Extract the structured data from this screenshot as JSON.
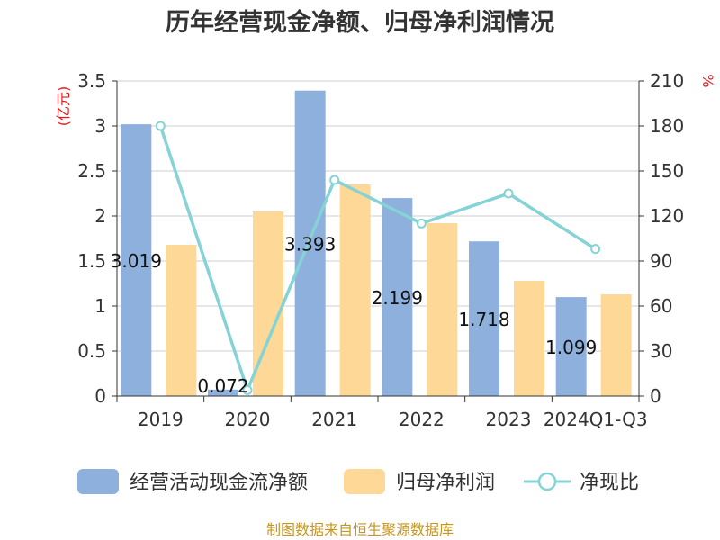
{
  "chart_data": {
    "type": "bar",
    "title": "历年经营现金净额、归母净利润情况",
    "categories": [
      "2019",
      "2020",
      "2021",
      "2022",
      "2023",
      "2024Q1-Q3"
    ],
    "y_left": {
      "unit": "(亿元)",
      "ylim": [
        0,
        3.5
      ],
      "ticks": [
        "0",
        "0.5",
        "1",
        "1.5",
        "2",
        "2.5",
        "3",
        "3.5"
      ]
    },
    "y_right": {
      "unit": "%",
      "ylim": [
        0,
        210
      ],
      "ticks": [
        "0",
        "30",
        "60",
        "90",
        "120",
        "150",
        "180",
        "210"
      ]
    },
    "series": [
      {
        "name": "经营活动现金流净额",
        "kind": "bar",
        "axis": "left",
        "color": "#8eb0dd",
        "values": [
          3.019,
          0.072,
          3.393,
          2.199,
          1.718,
          1.099
        ],
        "labels": [
          "3.019",
          "0.072",
          "3.393",
          "2.199",
          "1.718",
          "1.099"
        ]
      },
      {
        "name": "归母净利润",
        "kind": "bar",
        "axis": "left",
        "color": "#fed897",
        "values": [
          1.68,
          2.05,
          2.35,
          1.92,
          1.28,
          1.13
        ]
      },
      {
        "name": "净现比",
        "kind": "line",
        "axis": "right",
        "color": "#85d3d5",
        "values": [
          180.0,
          4.0,
          144.0,
          115.0,
          135.0,
          98.0
        ]
      }
    ],
    "grid": true,
    "legend": "bottom"
  },
  "footer": {
    "source": "制图数据来自恒生聚源数据库"
  }
}
